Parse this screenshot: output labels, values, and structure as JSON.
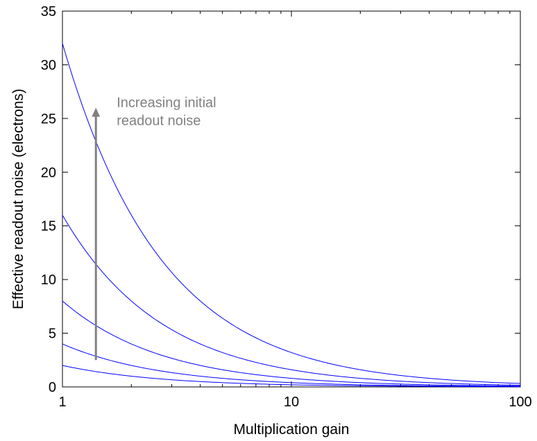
{
  "chart_data": {
    "type": "line",
    "xlabel": "Multiplication gain",
    "ylabel": "Effective readout noise (electrons)",
    "x_scale": "log",
    "xlim": [
      1,
      100
    ],
    "ylim": [
      0,
      35
    ],
    "x_ticks": [
      1,
      10,
      100
    ],
    "x_tick_labels": [
      "1",
      "10",
      "100"
    ],
    "y_ticks": [
      0,
      5,
      10,
      15,
      20,
      25,
      30,
      35
    ],
    "y_tick_labels": [
      "0",
      "5",
      "10",
      "15",
      "20",
      "25",
      "30",
      "35"
    ],
    "grid": false,
    "legend": "none",
    "line_color": "#0000ff",
    "series": [
      {
        "x": [
          1,
          1.5,
          2,
          3,
          5,
          10,
          20,
          50,
          100
        ],
        "y": [
          2.0,
          1.33,
          1.0,
          0.67,
          0.4,
          0.2,
          0.1,
          0.04,
          0.02
        ]
      },
      {
        "x": [
          1,
          1.5,
          2,
          3,
          5,
          10,
          20,
          50,
          100
        ],
        "y": [
          4.0,
          2.67,
          2.0,
          1.33,
          0.8,
          0.4,
          0.2,
          0.08,
          0.04
        ]
      },
      {
        "x": [
          1,
          1.5,
          2,
          3,
          5,
          10,
          20,
          50,
          100
        ],
        "y": [
          8.0,
          5.33,
          4.0,
          2.67,
          1.6,
          0.8,
          0.4,
          0.16,
          0.08
        ]
      },
      {
        "x": [
          1,
          1.5,
          2,
          3,
          5,
          10,
          20,
          50,
          100
        ],
        "y": [
          16.0,
          10.67,
          8.0,
          5.33,
          3.2,
          1.6,
          0.8,
          0.32,
          0.16
        ]
      },
      {
        "x": [
          1,
          1.5,
          2,
          3,
          5,
          10,
          20,
          50,
          100
        ],
        "y": [
          32.0,
          21.33,
          16.0,
          10.67,
          6.4,
          3.2,
          1.6,
          0.64,
          0.32
        ]
      }
    ],
    "annotation": {
      "text_line1": "Increasing initial",
      "text_line2": "readout noise",
      "color": "#808080",
      "arrow_x": 1.4,
      "arrow_y_from": 2.5,
      "arrow_y_to": 26
    }
  }
}
